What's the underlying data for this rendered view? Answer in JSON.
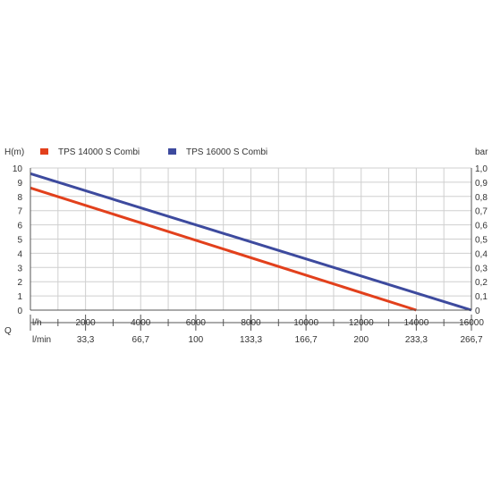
{
  "chart_data": {
    "type": "line",
    "y_left_label": "H(m)",
    "y_right_label": "bar",
    "x_row_label": "Q",
    "x_unit_lh": "l/h",
    "x_unit_lmin": "l/min",
    "y_left_ticks": [
      "0",
      "1",
      "2",
      "3",
      "4",
      "5",
      "6",
      "7",
      "8",
      "9",
      "10"
    ],
    "y_right_ticks": [
      "0",
      "0,1",
      "0,2",
      "0,3",
      "0,4",
      "0,5",
      "0,6",
      "0,7",
      "0,8",
      "0,9",
      "1,0"
    ],
    "x_ticks_lh": [
      "2000",
      "4000",
      "6000",
      "8000",
      "10000",
      "12000",
      "14000",
      "16000"
    ],
    "x_ticks_lmin": [
      "33,3",
      "66,7",
      "100",
      "133,3",
      "166,7",
      "200",
      "233,3",
      "266,7"
    ],
    "xlim": [
      0,
      16000
    ],
    "ylim": [
      0,
      10
    ],
    "grid": true,
    "legend_placement": "top-left",
    "series": [
      {
        "name": "TPS 14000 S Combi",
        "color": "#e2401c",
        "x": [
          0,
          14000
        ],
        "y": [
          8.6,
          0
        ]
      },
      {
        "name": "TPS 16000 S Combi",
        "color": "#3d4a9e",
        "x": [
          0,
          16000
        ],
        "y": [
          9.6,
          0
        ]
      }
    ]
  }
}
